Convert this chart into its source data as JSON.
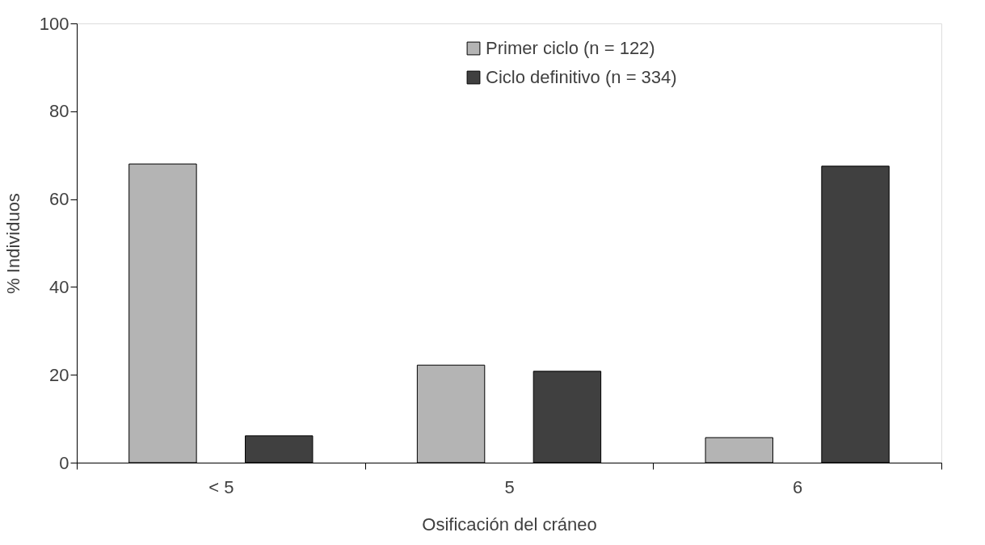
{
  "chart_data": {
    "type": "bar",
    "xlabel": "Osificación del cráneo",
    "ylabel": "% Individuos",
    "categories": [
      "< 5",
      "5",
      "6"
    ],
    "series": [
      {
        "name": "Primer ciclo (n = 122)",
        "color": "#b4b4b4",
        "values": [
          68,
          22.2,
          5.7
        ]
      },
      {
        "name": "Ciclo definitivo (n = 334)",
        "color": "#404040",
        "values": [
          6.1,
          20.8,
          67.5
        ]
      }
    ],
    "ylim": [
      0,
      100
    ],
    "yticks": [
      0,
      20,
      40,
      60,
      80,
      100
    ],
    "grid": false,
    "legend": "top"
  }
}
